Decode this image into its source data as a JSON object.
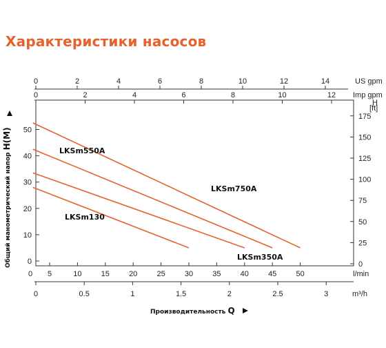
{
  "title": "Характеристики насосов",
  "chart_data": {
    "type": "line",
    "xlabel": "Производительность",
    "xsymbol": "Q",
    "ylabel": "Общий манометрический напор",
    "ysymbol": "H(M)",
    "axes": {
      "lmin": {
        "unit": "l/min",
        "range": [
          0,
          50
        ],
        "ticks": [
          "0",
          "5",
          "10",
          "15",
          "20",
          "25",
          "30",
          "35",
          "40",
          "45",
          "50"
        ]
      },
      "m3h": {
        "unit": "m³/h",
        "range": [
          0,
          3
        ],
        "ticks": [
          "0",
          "0.5",
          "1",
          "1.5",
          "2",
          "2.5",
          "3"
        ]
      },
      "usgpm": {
        "unit": "US gpm",
        "range": [
          0,
          14
        ],
        "ticks": [
          "0",
          "2",
          "4",
          "6",
          "8",
          "10",
          "12",
          "14"
        ]
      },
      "impgpm": {
        "unit": "Imp gpm",
        "range": [
          0,
          12
        ],
        "ticks": [
          "0",
          "2",
          "4",
          "6",
          "8",
          "10",
          "12"
        ]
      },
      "hm": {
        "unit": "H(M)",
        "range": [
          0,
          55
        ],
        "ticks": [
          "0",
          "10",
          "20",
          "30",
          "40",
          "50"
        ]
      },
      "hft": {
        "unit": "H [ft]",
        "range": [
          0,
          180
        ],
        "ticks": [
          "0",
          "25",
          "50",
          "75",
          "100",
          "125",
          "150",
          "175"
        ]
      }
    },
    "grid": false,
    "series": [
      {
        "name": "LKSm550A",
        "x": [
          2,
          45
        ],
        "y": [
          42.5,
          5
        ]
      },
      {
        "name": "LKSm750A",
        "x": [
          2,
          50
        ],
        "y": [
          52.5,
          5
        ]
      },
      {
        "name": "LKSm130",
        "x": [
          2,
          30
        ],
        "y": [
          28,
          5
        ]
      },
      {
        "name": "LKSm350A",
        "x": [
          2,
          40
        ],
        "y": [
          33.5,
          5
        ]
      }
    ],
    "line_color": "#e8612c"
  }
}
